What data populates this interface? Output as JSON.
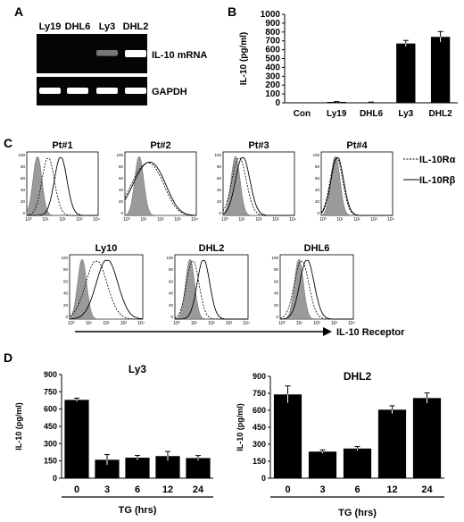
{
  "panel_a": {
    "letter": "A",
    "lanes": [
      "Ly19",
      "DHL6",
      "Ly3",
      "DHL2"
    ],
    "il10_label": "IL-10 mRNA",
    "gapdh_label": "GAPDH",
    "il10_band_intensity": [
      0.0,
      0.0,
      0.3,
      1.0
    ],
    "gapdh_band_intensity": [
      1.0,
      1.0,
      1.0,
      1.0
    ]
  },
  "panel_b": {
    "letter": "B"
  },
  "panel_c": {
    "letter": "C",
    "arrow_label": "IL-10 Receptor",
    "legend": [
      "IL-10Rα",
      "IL-10Rβ"
    ],
    "histograms": [
      {
        "title": "Pt#1"
      },
      {
        "title": "Pt#2"
      },
      {
        "title": "Pt#3"
      },
      {
        "title": "Pt#4"
      },
      {
        "title": "Ly10"
      },
      {
        "title": "DHL2"
      },
      {
        "title": "DHL6"
      }
    ],
    "tick_labels": [
      "10⁰",
      "10¹",
      "10²",
      "10³",
      "10⁴"
    ],
    "y_ticks": [
      "100",
      "80",
      "60",
      "40",
      "20",
      "0"
    ]
  },
  "panel_d": {
    "letter": "D"
  },
  "chart_data": [
    {
      "type": "bar",
      "categories": [
        "Con",
        "Ly19",
        "DHL6",
        "Ly3",
        "DHL2"
      ],
      "values": [
        0,
        10,
        5,
        670,
        745
      ],
      "errors": [
        0,
        4,
        3,
        35,
        60
      ],
      "ylabel": "IL-10 (pg/ml)",
      "ylim": [
        0,
        1000
      ],
      "yticks": [
        0,
        100,
        200,
        300,
        400,
        500,
        600,
        700,
        800,
        900,
        1000
      ]
    },
    {
      "type": "bar",
      "title": "Ly3",
      "categories": [
        "0",
        "3",
        "6",
        "12",
        "24"
      ],
      "values": [
        680,
        160,
        178,
        192,
        175
      ],
      "errors": [
        15,
        45,
        20,
        40,
        22
      ],
      "xlabel": "TG (hrs)",
      "ylabel": "IL-10 (pg/ml)",
      "ylim": [
        0,
        900
      ],
      "yticks": [
        0,
        150,
        300,
        450,
        600,
        750,
        900
      ]
    },
    {
      "type": "bar",
      "title": "DHL2",
      "categories": [
        "0",
        "3",
        "6",
        "12",
        "24"
      ],
      "values": [
        740,
        235,
        262,
        605,
        708
      ],
      "errors": [
        75,
        15,
        18,
        35,
        45
      ],
      "xlabel": "TG (hrs)",
      "ylabel": "IL-10 (pg/ml)",
      "ylim": [
        0,
        900
      ],
      "yticks": [
        0,
        150,
        300,
        450,
        600,
        750,
        900
      ]
    }
  ]
}
